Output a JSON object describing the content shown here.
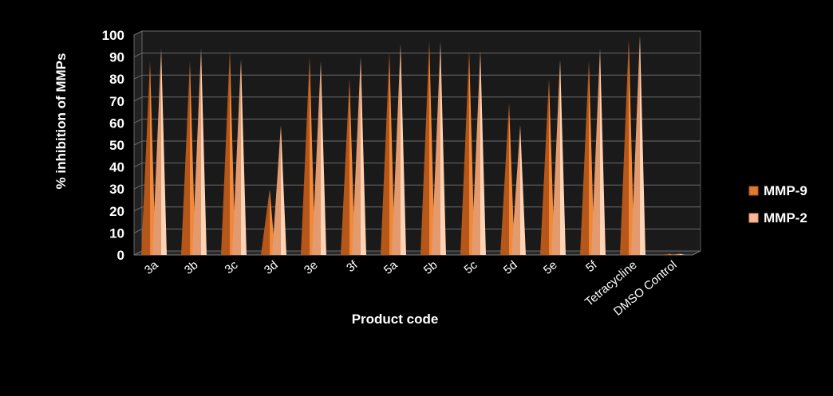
{
  "chart_data": {
    "type": "bar",
    "categories": [
      "3a",
      "3b",
      "3c",
      "3d",
      "3e",
      "3f",
      "5a",
      "5b",
      "5c",
      "5d",
      "5e",
      "5f",
      "Tetracycline",
      "DMSO Control"
    ],
    "series": [
      {
        "name": "MMP-9",
        "values": [
          88,
          88,
          93,
          30,
          90,
          80,
          92,
          97,
          93,
          69,
          80,
          88,
          98,
          0.5
        ],
        "color": "#e07a2e"
      },
      {
        "name": "MMP-2",
        "values": [
          94,
          94,
          89,
          59,
          88,
          90,
          96,
          97,
          93,
          59,
          89,
          94,
          100,
          0.5
        ],
        "color": "#f7b892"
      }
    ],
    "xlabel": "Product code",
    "ylabel": "% inhibition of MMPs",
    "ylim": [
      0,
      100
    ],
    "yticks": [
      0,
      10,
      20,
      30,
      40,
      50,
      60,
      70,
      80,
      90,
      100
    ],
    "grid": true,
    "legend_position": "right"
  }
}
